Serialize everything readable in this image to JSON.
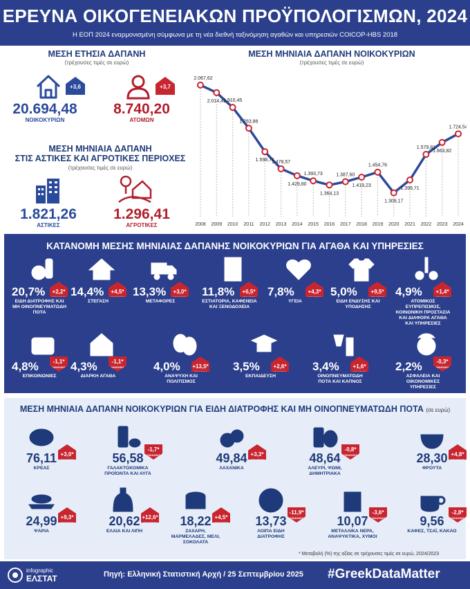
{
  "header": {
    "title": "ΕΡΕΥΝΑ ΟΙΚΟΓΕΝΕΙΑΚΩΝ ΠΡΟΫΠΟΛΟΓΙΣΜΩΝ, 2024",
    "subtitle": "Η ΕΟΠ 2024 εναρμονισμένη σύμφωνα με τη νέα διεθνή ταξινόμηση αγαθών και υπηρεσιών COICOP-HBS 2018"
  },
  "annual": {
    "title": "ΜΕΣΗ ΕΤΗΣΙΑ ΔΑΠΑΝΗ",
    "sub": "(τρέχουσες τιμές σε ευρώ)",
    "household": {
      "value": "20.694,48",
      "label": "ΝΟΙΚΟΚΥΡΙΩΝ",
      "change": "+3,6",
      "period": "2024/2023"
    },
    "person": {
      "value": "8.740,20",
      "label": "ΑΤΟΜΩΝ",
      "change": "+3,7",
      "period": "2024/2023"
    }
  },
  "urban": {
    "title1": "ΜΕΣΗ ΜΗΝΙΑΙΑ ΔΑΠΑΝΗ",
    "title2": "ΣΤΙΣ ΑΣΤΙΚΕΣ ΚΑΙ ΑΓΡΟΤΙΚΕΣ ΠΕΡΙΟΧΕΣ",
    "sub": "(τρέχουσες τιμές σε ευρώ)",
    "urban_value": "1.821,26",
    "urban_label": "ΑΣΤΙΚΕΣ",
    "rural_value": "1.296,41",
    "rural_label": "ΑΓΡΟΤΙΚΕΣ"
  },
  "chart_data": {
    "type": "line",
    "title": "ΜΕΣΗ ΜΗΝΙΑΙΑ ΔΑΠΑΝΗ ΝΟΙΚΟΚΥΡΙΩΝ",
    "subtitle": "(τρέχουσες τιμές σε ευρώ)",
    "x": [
      "2008",
      "2009",
      "2010",
      "2011",
      "2012",
      "2013",
      "2014",
      "2015",
      "2016",
      "2017",
      "2018",
      "2019",
      "2020",
      "2021",
      "2022",
      "2023",
      "2024"
    ],
    "values": [
      2067.62,
      2014.41,
      1910.45,
      1763.86,
      1598.71,
      1478.57,
      1429.8,
      1393.73,
      1364.13,
      1387.6,
      1419.23,
      1454.76,
      1309.17,
      1399.71,
      1579.81,
      1663.82,
      1724.54
    ],
    "labels": [
      "2.067,62",
      "2.014,41",
      "1.910,45",
      "1.763,86",
      "1.598,71",
      "1.478,57",
      "1.429,80",
      "1.393,73",
      "1.364,13",
      "1.387,60",
      "1.419,23",
      "1.454,76",
      "1.309,17",
      "1.399,71",
      "1.579,81",
      "1.663,82",
      "1.724,54"
    ],
    "label_pos": [
      "above",
      "below",
      "above",
      "above",
      "below",
      "above",
      "below",
      "above",
      "below",
      "above",
      "below",
      "above",
      "below",
      "below",
      "above",
      "below",
      "above"
    ],
    "ylim": [
      1200,
      2150
    ],
    "line_color": "#2b4a9b",
    "marker_color": "#c8252f"
  },
  "categories": {
    "title": "ΚΑΤΑΝΟΜΗ ΜΕΣΗΣ ΜΗΝΙΑΙΑΣ ΔΑΠΑΝΗΣ ΝΟΙΚΟΚΥΡΙΩΝ ΓΙΑ ΑΓΑΘΑ ΚΑΙ ΥΠΗΡΕΣΙΕΣ",
    "period": "2024/2023",
    "items": [
      {
        "pct": "20,7",
        "label": "ΕΙΔΗ ΔΙΑΤΡΟΦΗΣ ΚΑΙ ΜΗ ΟΙΝΟΠΝΕΥΜΑΤΩΔΗ ΠΟΤΑ",
        "change": "+2,2",
        "icon": "food-icon"
      },
      {
        "pct": "14,4",
        "label": "ΣΤΕΓΑΣΗ",
        "change": "+4,5",
        "icon": "house-icon"
      },
      {
        "pct": "13,3",
        "label": "ΜΕΤΑΦΟΡΕΣ",
        "change": "+3,0",
        "icon": "truck-icon"
      },
      {
        "pct": "11,8",
        "label": "ΕΣΤΙΑΤΟΡΙΑ, ΚΑΦΕΝΕΙΑ ΚΑΙ ΞΕΝΟΔΟΧΕΙΑ",
        "change": "+6,5",
        "icon": "hotel-icon"
      },
      {
        "pct": "7,8",
        "label": "ΥΓΕΙΑ",
        "change": "+4,3",
        "icon": "heart-icon"
      },
      {
        "pct": "5,0",
        "label": "ΕΙΔΗ ΕΝΔΥΣΗΣ ΚΑΙ ΥΠΟΔΗΣΗΣ",
        "change": "+9,5",
        "icon": "clothing-icon"
      },
      {
        "pct": "4,9",
        "label": "ΑΤΟΜΙΚΟΣ ΕΥΠΡΕΠΙΣΜΟΣ, ΚΟΙΝΩΝΙΚΗ ΠΡΟΣΤΑΣΙΑ ΚΑΙ ΔΙΑΦΟΡΑ ΑΓΑΘΑ ΚΑΙ ΥΠΗΡΕΣΙΕΣ",
        "change": "+1,4",
        "icon": "scissors-icon"
      },
      {
        "pct": "4,8",
        "label": "ΕΠΙΚΟΙΝΩΝΙΕΣ",
        "change": "-1,1",
        "icon": "phone-icon"
      },
      {
        "pct": "4,3",
        "label": "ΔΙΑΡΚΗ ΑΓΑΘΑ",
        "change": "-1,1",
        "icon": "durables-icon"
      },
      {
        "pct": "4,0",
        "label": "ΑΝΑΨΥΧΗ ΚΑΙ ΠΟΛΙΤΙΣΜΟΣ",
        "change": "+13,5",
        "icon": "masks-icon"
      },
      {
        "pct": "3,5",
        "label": "ΕΚΠΑΙΔΕΥΣΗ",
        "change": "+2,6",
        "icon": "graduation-icon"
      },
      {
        "pct": "3,4",
        "label": "ΟΙΝΟΠΝΕΥΜΑΤΩΔΗ ΠΟΤΑ ΚΑΙ ΚΑΠΝΟΣ",
        "change": "+1,6",
        "icon": "drinks-icon"
      },
      {
        "pct": "2,2",
        "label": "ΑΣΦΑΛΕΙΑ ΚΑΙ ΟΙΚΟΝΟΜΙΚΕΣ ΥΠΗΡΕΣΙΕΣ",
        "change": "-0,3",
        "icon": "insurance-icon"
      }
    ]
  },
  "food": {
    "title": "ΜΕΣΗ ΜΗΝΙΑΙΑ ΔΑΠΑΝΗ ΝΟΙΚΟΚΥΡΙΩΝ ΓΙΑ ΕΙΔΗ ΔΙΑΤΡΟΦΗΣ ΚΑΙ ΜΗ ΟΙΝΟΠΝΕΥΜΑΤΩΔΗ ΠΟΤΑ",
    "unit": "(σε ευρώ)",
    "period": "2024/2023",
    "items": [
      {
        "val": "76,11",
        "label": "ΚΡΕΑΣ",
        "change": "+3,0",
        "icon": "meat-icon"
      },
      {
        "val": "56,58",
        "label": "ΓΑΛΑΚΤΟΚΟΜΙΚΑ ΠΡΟΪΟΝΤΑ ΚΑΙ ΑΥΓΑ",
        "change": "-1,7",
        "icon": "dairy-icon"
      },
      {
        "val": "49,84",
        "label": "ΛΑΧΑΝΙΚΑ",
        "change": "+3,3",
        "icon": "vegetables-icon"
      },
      {
        "val": "48,64",
        "label": "ΑΛΕΥΡΙ, ΨΩΜΙ, ΔΗΜΗΤΡΙΑΚΑ",
        "change": "-0,8",
        "icon": "bread-icon"
      },
      {
        "val": "28,30",
        "label": "ΦΡΟΥΤΑ",
        "change": "+4,8",
        "icon": "fruit-icon"
      },
      {
        "val": "24,99",
        "label": "ΨΑΡΙΑ",
        "change": "+9,3",
        "icon": "fish-icon"
      },
      {
        "val": "20,62",
        "label": "ΕΛΑΙΑ ΚΑΙ ΛΙΠΗ",
        "change": "+12,6",
        "icon": "oil-icon"
      },
      {
        "val": "18,22",
        "label": "ΖΑΧΑΡΗ, ΜΑΡΜΕΛΑΔΕΣ, ΜΕΛΙ, ΣΟΚΟΛΑΤΑ",
        "change": "+4,5",
        "icon": "sugar-icon"
      },
      {
        "val": "13,73",
        "label": "ΛΟΙΠΑ ΕΙΔΗ ΔΙΑΤΡΟΦΗΣ",
        "change": "-11,9",
        "icon": "other-food-icon"
      },
      {
        "val": "10,07",
        "label": "ΜΕΤΑΛΛΙΚΑ ΝΕΡΑ, ΑΝΑΨΥΚΤΙΚΑ, ΧΥΜΟΙ",
        "change": "-3,6",
        "icon": "water-icon"
      },
      {
        "val": "9,56",
        "label": "ΚΑΦΕΣ, ΤΣΑΪ, ΚΑΚΑΟ",
        "change": "-2,8",
        "icon": "coffee-icon"
      }
    ],
    "note": "* Μεταβολή (%) της αξίας σε τρέχουσες τιμές σε ευρώ, 2024/2023"
  },
  "footer": {
    "logo_top": "infographic",
    "logo_bottom": "ΕΛΣΤΑΤ",
    "source": "Πηγή: Ελληνική Στατιστική Αρχή / 25 Σεπτεμβρίου 2025",
    "hashtag": "#GreekDataMatter"
  }
}
